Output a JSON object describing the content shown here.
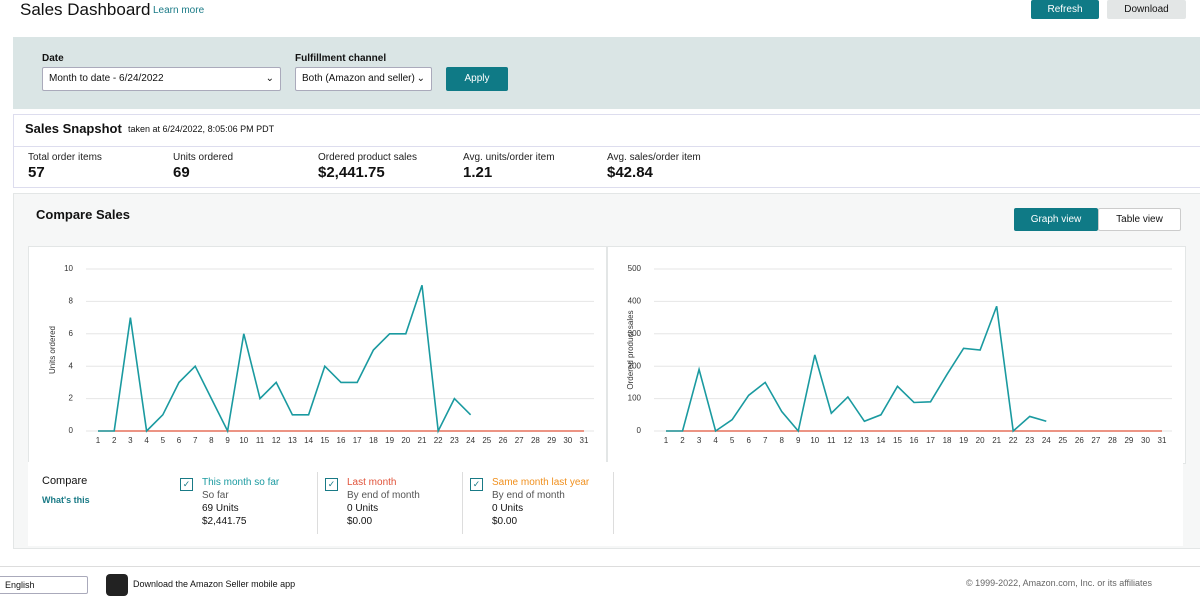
{
  "header": {
    "title": "Sales Dashboard",
    "learn_more": "Learn more",
    "refresh": "Refresh",
    "download": "Download"
  },
  "filters": {
    "date_label": "Date",
    "date_value": "Month to date - 6/24/2022",
    "channel_label": "Fulfillment channel",
    "channel_value": "Both (Amazon and seller)",
    "apply": "Apply"
  },
  "snapshot": {
    "title": "Sales Snapshot",
    "taken": "taken at 6/24/2022, 8:05:06 PM PDT",
    "metrics": [
      {
        "label": "Total order items",
        "value": "57"
      },
      {
        "label": "Units ordered",
        "value": "69"
      },
      {
        "label": "Ordered product sales",
        "value": "$2,441.75"
      },
      {
        "label": "Avg. units/order item",
        "value": "1.21"
      },
      {
        "label": "Avg. sales/order item",
        "value": "$42.84"
      }
    ]
  },
  "compare_sales": {
    "title": "Compare Sales",
    "graph_view": "Graph view",
    "table_view": "Table view"
  },
  "chart_data": [
    {
      "type": "line",
      "y_label": "Units ordered",
      "categories": [
        1,
        2,
        3,
        4,
        5,
        6,
        7,
        8,
        9,
        10,
        11,
        12,
        13,
        14,
        15,
        16,
        17,
        18,
        19,
        20,
        21,
        22,
        23,
        24,
        25,
        26,
        27,
        28,
        29,
        30,
        31
      ],
      "ylim": [
        0,
        10
      ],
      "yticks": [
        0,
        2,
        4,
        6,
        8,
        10
      ],
      "grid": true,
      "series": [
        {
          "color": "#e0533a",
          "values": [
            0,
            0,
            0,
            0,
            0,
            0,
            0,
            0,
            0,
            0,
            0,
            0,
            0,
            0,
            0,
            0,
            0,
            0,
            0,
            0,
            0,
            0,
            0,
            0,
            0,
            0,
            0,
            0,
            0,
            0,
            0
          ]
        },
        {
          "color": "#1a9aa0",
          "values": [
            0,
            0,
            7,
            0,
            1,
            3,
            4,
            2,
            0,
            6,
            2,
            3,
            1,
            1,
            4,
            3,
            3,
            5,
            6,
            6,
            9,
            0,
            2,
            1,
            null,
            null,
            null,
            null,
            null,
            null,
            null
          ]
        }
      ]
    },
    {
      "type": "line",
      "y_label": "Ordered product sales",
      "categories": [
        1,
        2,
        3,
        4,
        5,
        6,
        7,
        8,
        9,
        10,
        11,
        12,
        13,
        14,
        15,
        16,
        17,
        18,
        19,
        20,
        21,
        22,
        23,
        24,
        25,
        26,
        27,
        28,
        29,
        30,
        31
      ],
      "ylim": [
        0,
        500
      ],
      "yticks": [
        0,
        100,
        200,
        300,
        400,
        500
      ],
      "grid": true,
      "series": [
        {
          "color": "#e0533a",
          "values": [
            0,
            0,
            0,
            0,
            0,
            0,
            0,
            0,
            0,
            0,
            0,
            0,
            0,
            0,
            0,
            0,
            0,
            0,
            0,
            0,
            0,
            0,
            0,
            0,
            0,
            0,
            0,
            0,
            0,
            0,
            0
          ]
        },
        {
          "color": "#1a9aa0",
          "values": [
            0,
            0,
            190,
            0,
            35,
            110,
            150,
            60,
            0,
            235,
            55,
            105,
            30,
            50,
            138,
            88,
            90,
            175,
            255,
            250,
            385,
            0,
            45,
            30,
            null,
            null,
            null,
            null,
            null,
            null,
            null
          ]
        }
      ]
    }
  ],
  "compare": {
    "title": "Compare",
    "whats_this": "What's this",
    "items": [
      {
        "label": "This month so far",
        "sub": "So far",
        "units": "69 Units",
        "sales": "$2,441.75"
      },
      {
        "label": "Last month",
        "sub": "By end of month",
        "units": "0 Units",
        "sales": "$0.00"
      },
      {
        "label": "Same month last year",
        "sub": "By end of month",
        "units": "0 Units",
        "sales": "$0.00"
      }
    ]
  },
  "footer": {
    "language": "English",
    "app": "Download the Amazon Seller mobile app",
    "copyright": "© 1999-2022, Amazon.com, Inc. or its affiliates"
  }
}
